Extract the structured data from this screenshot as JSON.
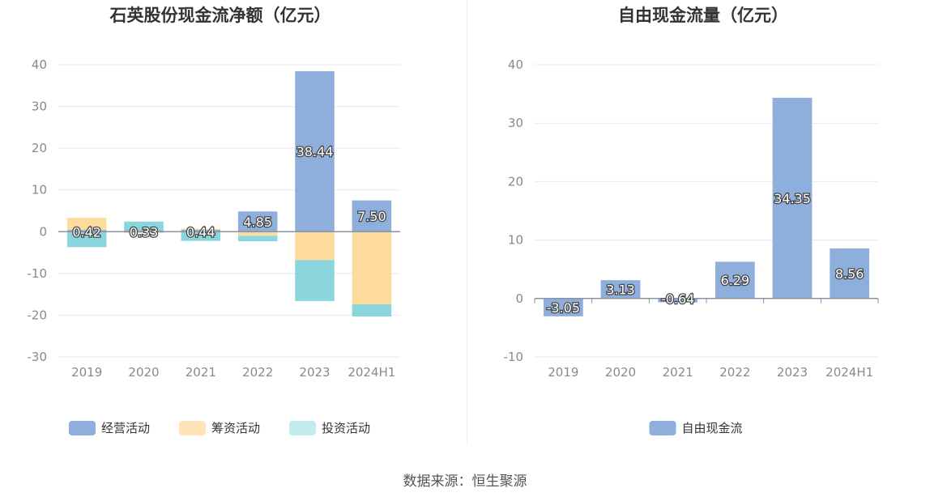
{
  "source_label": "数据来源：恒生聚源",
  "chart_data": [
    {
      "type": "bar",
      "stacked": true,
      "title": "石英股份现金流净额（亿元）",
      "categories": [
        "2019",
        "2020",
        "2021",
        "2022",
        "2023",
        "2024H1"
      ],
      "ylim": [
        -30,
        40
      ],
      "yticks": [
        40,
        30,
        20,
        10,
        0,
        -10,
        -20,
        -30
      ],
      "series": [
        {
          "name": "经营活动",
          "color": "#8eaedb",
          "values": [
            0.42,
            0.33,
            0.44,
            4.85,
            38.44,
            7.5
          ],
          "labels": [
            "0.42",
            "0.33",
            "0.44",
            "4.85",
            "38.44",
            "7.50"
          ]
        },
        {
          "name": "筹资活动",
          "color": "#fddb9c",
          "values": [
            2.9,
            -0.3,
            0.3,
            -1.0,
            -6.8,
            -17.4
          ],
          "labels": []
        },
        {
          "name": "投资活动",
          "color": "#8ad6dc",
          "values": [
            -3.7,
            2.1,
            -2.2,
            -1.3,
            -9.8,
            -2.9
          ],
          "labels": []
        }
      ],
      "legend": [
        {
          "name": "经营活动",
          "color": "#8eaedb"
        },
        {
          "name": "筹资活动",
          "color": "#fee4b8"
        },
        {
          "name": "投资活动",
          "color": "#c2ebee"
        }
      ]
    },
    {
      "type": "bar",
      "title": "自由现金流量（亿元）",
      "categories": [
        "2019",
        "2020",
        "2021",
        "2022",
        "2023",
        "2024H1"
      ],
      "ylim": [
        -10,
        40
      ],
      "yticks": [
        40,
        30,
        20,
        10,
        0,
        -10
      ],
      "series": [
        {
          "name": "自由现金流",
          "color": "#8eaedb",
          "values": [
            -3.05,
            3.13,
            -0.64,
            6.29,
            34.35,
            8.56
          ],
          "labels": [
            "-3.05",
            "3.13",
            "-0.64",
            "6.29",
            "34.35",
            "8.56"
          ]
        }
      ],
      "legend": [
        {
          "name": "自由现金流",
          "color": "#8eaedb"
        }
      ]
    }
  ]
}
